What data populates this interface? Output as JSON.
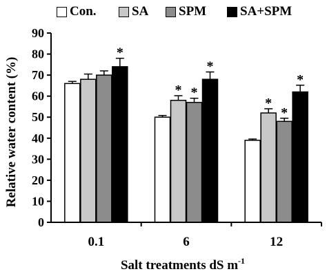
{
  "chart_data": {
    "type": "bar",
    "xlabel": "Salt treatments dS m",
    "xlabel_sup": "-1",
    "ylabel": "Relative water content (%)",
    "ylim": [
      0,
      90
    ],
    "yticks": [
      0,
      10,
      20,
      30,
      40,
      50,
      60,
      70,
      80,
      90
    ],
    "categories": [
      "0.1",
      "6",
      "12"
    ],
    "legend_position": "top",
    "significance_marker": "*",
    "series": [
      {
        "name": "Con.",
        "color": "#ffffff",
        "values": [
          66,
          50,
          39
        ],
        "errors": [
          1,
          0.8,
          0.6
        ],
        "significant": [
          false,
          false,
          false
        ]
      },
      {
        "name": "SA",
        "color": "#c8c8c8",
        "values": [
          68,
          58,
          52
        ],
        "errors": [
          2.5,
          2.2,
          2
        ],
        "significant": [
          false,
          true,
          true
        ]
      },
      {
        "name": "SPM",
        "color": "#8c8c8c",
        "values": [
          70,
          57,
          48
        ],
        "errors": [
          2,
          2,
          1.5
        ],
        "significant": [
          false,
          true,
          true
        ]
      },
      {
        "name": "SA+SPM",
        "color": "#000000",
        "values": [
          74,
          68,
          62
        ],
        "errors": [
          4,
          3.5,
          3.2
        ],
        "significant": [
          true,
          true,
          true
        ]
      }
    ]
  }
}
